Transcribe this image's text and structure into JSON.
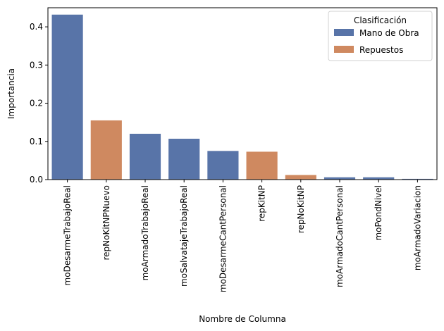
{
  "chart_data": {
    "type": "bar",
    "title": "",
    "xlabel": "Nombre de Columna",
    "ylabel": "Importancia",
    "ylim": [
      0,
      0.45
    ],
    "yticks": [
      0.0,
      0.1,
      0.2,
      0.3,
      0.4
    ],
    "ytick_labels": [
      "0.0",
      "0.1",
      "0.2",
      "0.3",
      "0.4"
    ],
    "grid": false,
    "legend": {
      "title": "Clasificación",
      "placement": "top-right",
      "entries": [
        {
          "label": "Mano de Obra",
          "color": "#5874a8"
        },
        {
          "label": "Repuestos",
          "color": "#cf8960"
        }
      ]
    },
    "categories": [
      "moDesarmeTrabajoReal",
      "repNoKitNPNuevo",
      "moArmadoTrabajoReal",
      "moSalvatajeTrabajoReal",
      "moDesarmeCantPersonal",
      "repKitNP",
      "repNoKitNP",
      "moArmadoCantPersonal",
      "moPondNivel",
      "moArmadoVariacion"
    ],
    "values": [
      0.432,
      0.155,
      0.12,
      0.107,
      0.075,
      0.073,
      0.012,
      0.006,
      0.006,
      0.002
    ],
    "classification": [
      "Mano de Obra",
      "Repuestos",
      "Mano de Obra",
      "Mano de Obra",
      "Mano de Obra",
      "Repuestos",
      "Repuestos",
      "Mano de Obra",
      "Mano de Obra",
      "Mano de Obra"
    ]
  }
}
